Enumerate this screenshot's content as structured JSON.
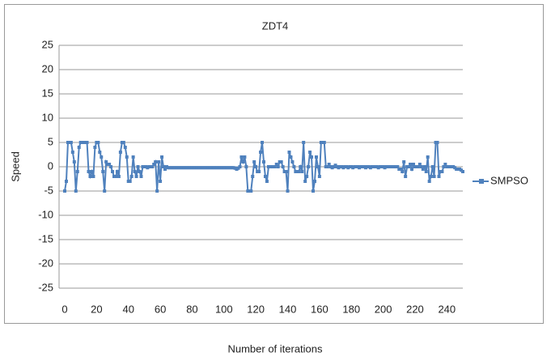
{
  "chart_data": {
    "type": "line",
    "title": "ZDT4",
    "x_label": "Number of iterations",
    "y_label": "Speed",
    "x": [
      0,
      1,
      2,
      3,
      4,
      5,
      6,
      7,
      8,
      9,
      10,
      11,
      12,
      13,
      14,
      15,
      16,
      17,
      18,
      19,
      20,
      21,
      22,
      23,
      24,
      25,
      26,
      27,
      28,
      29,
      30,
      31,
      32,
      33,
      34,
      35,
      36,
      37,
      38,
      39,
      40,
      41,
      42,
      43,
      44,
      45,
      46,
      47,
      48,
      49,
      50,
      51,
      52,
      53,
      54,
      55,
      56,
      57,
      58,
      59,
      60,
      61,
      62,
      63,
      64,
      65,
      66,
      67,
      68,
      69,
      70,
      71,
      72,
      73,
      74,
      75,
      76,
      77,
      78,
      79,
      80,
      81,
      82,
      83,
      84,
      85,
      86,
      87,
      88,
      89,
      90,
      91,
      92,
      93,
      94,
      95,
      96,
      97,
      98,
      99,
      100,
      101,
      102,
      103,
      104,
      105,
      106,
      107,
      108,
      109,
      110,
      111,
      112,
      113,
      114,
      115,
      116,
      117,
      118,
      119,
      120,
      121,
      122,
      123,
      124,
      125,
      126,
      127,
      128,
      129,
      130,
      131,
      132,
      133,
      134,
      135,
      136,
      137,
      138,
      139,
      140,
      141,
      142,
      143,
      144,
      145,
      146,
      147,
      148,
      149,
      150,
      151,
      152,
      153,
      154,
      155,
      156,
      157,
      158,
      159,
      160,
      161,
      162,
      163,
      164,
      165,
      166,
      167,
      168,
      169,
      170,
      171,
      172,
      173,
      174,
      175,
      176,
      177,
      178,
      179,
      180,
      181,
      182,
      183,
      184,
      185,
      186,
      187,
      188,
      189,
      190,
      191,
      192,
      193,
      194,
      195,
      196,
      197,
      198,
      199,
      200,
      201,
      202,
      203,
      204,
      205,
      206,
      207,
      208,
      209,
      210,
      211,
      212,
      213,
      214,
      215,
      216,
      217,
      218,
      219,
      220,
      221,
      222,
      223,
      224,
      225,
      226,
      227,
      228,
      229,
      230,
      231,
      232,
      233,
      234,
      235,
      236,
      237,
      238,
      239,
      240,
      241,
      242,
      243,
      244,
      245,
      246,
      247,
      248,
      249,
      250
    ],
    "series": [
      {
        "name": "SMPSO",
        "color": "#4f81bd",
        "values": [
          -5,
          -3,
          5,
          5,
          5,
          3,
          1,
          -5,
          -1,
          4,
          5,
          5,
          5,
          5,
          5,
          -1,
          -2,
          -1,
          -2,
          4,
          5,
          5,
          3,
          2,
          -1,
          -5,
          1,
          0.5,
          0.5,
          0,
          -1,
          -2,
          -2,
          -1,
          -2,
          3,
          5,
          5,
          4,
          2,
          -3,
          -3,
          -2,
          2,
          -1,
          -2,
          0,
          -1,
          -2,
          0,
          0,
          0,
          -0.2,
          0,
          0,
          0,
          0.5,
          1,
          -5,
          1,
          -3,
          2,
          0,
          -0.5,
          0,
          -0.2,
          -0.2,
          -0.2,
          -0.2,
          -0.2,
          -0.2,
          -0.2,
          -0.2,
          -0.2,
          -0.2,
          -0.2,
          -0.2,
          -0.2,
          -0.2,
          -0.2,
          -0.2,
          -0.2,
          -0.2,
          -0.2,
          -0.2,
          -0.2,
          -0.2,
          -0.2,
          -0.2,
          -0.2,
          -0.2,
          -0.2,
          -0.2,
          -0.2,
          -0.2,
          -0.2,
          -0.2,
          -0.2,
          -0.2,
          -0.2,
          -0.2,
          -0.2,
          -0.2,
          -0.2,
          -0.2,
          -0.2,
          -0.2,
          -0.3,
          -0.5,
          -0.3,
          0,
          2,
          1,
          2,
          0,
          -5,
          -5,
          -5,
          -2,
          1,
          0,
          -1,
          -1,
          3,
          5,
          1,
          -2,
          -3,
          0,
          0,
          0,
          0,
          0,
          0.5,
          0,
          1,
          1,
          0,
          -1,
          -1,
          -5,
          3,
          2,
          1,
          0,
          -1,
          -1,
          -1,
          0,
          -1,
          5,
          -3,
          -2,
          0,
          3,
          2,
          -5,
          -3,
          2,
          0,
          -2,
          5,
          5,
          5,
          0,
          0,
          0.5,
          0,
          -0.2,
          0,
          0.3,
          0,
          -0.2,
          0,
          0,
          -0.2,
          0,
          0,
          -0.2,
          0,
          0,
          -0.2,
          0,
          0,
          0,
          -0.2,
          0,
          0,
          0,
          -0.2,
          0,
          0,
          -0.2,
          0,
          0,
          0,
          0,
          -0.2,
          0,
          0,
          0,
          -0.2,
          0,
          0,
          0,
          0,
          0,
          0,
          0,
          0,
          -0.5,
          -0.5,
          -1,
          1,
          -2,
          0,
          0,
          0.5,
          -0.5,
          0.5,
          0,
          0,
          0,
          0.5,
          0,
          -0.5,
          0,
          -1,
          2,
          -3,
          -2,
          0,
          -2,
          5,
          5,
          -2,
          -1,
          -1,
          0,
          0.5,
          0,
          0,
          0,
          0,
          0,
          -0.2,
          -0.5,
          -0.5,
          -0.5,
          -0.7,
          -1
        ]
      }
    ],
    "xlim": [
      0,
      250
    ],
    "xticks": [
      0,
      20,
      40,
      60,
      80,
      100,
      120,
      140,
      160,
      180,
      200,
      220,
      240
    ],
    "ylim": [
      -25,
      25
    ],
    "yticks": [
      25,
      20,
      15,
      10,
      5,
      0,
      -5,
      -10,
      -15,
      -20,
      -25
    ],
    "grid": true,
    "legend": "right"
  }
}
